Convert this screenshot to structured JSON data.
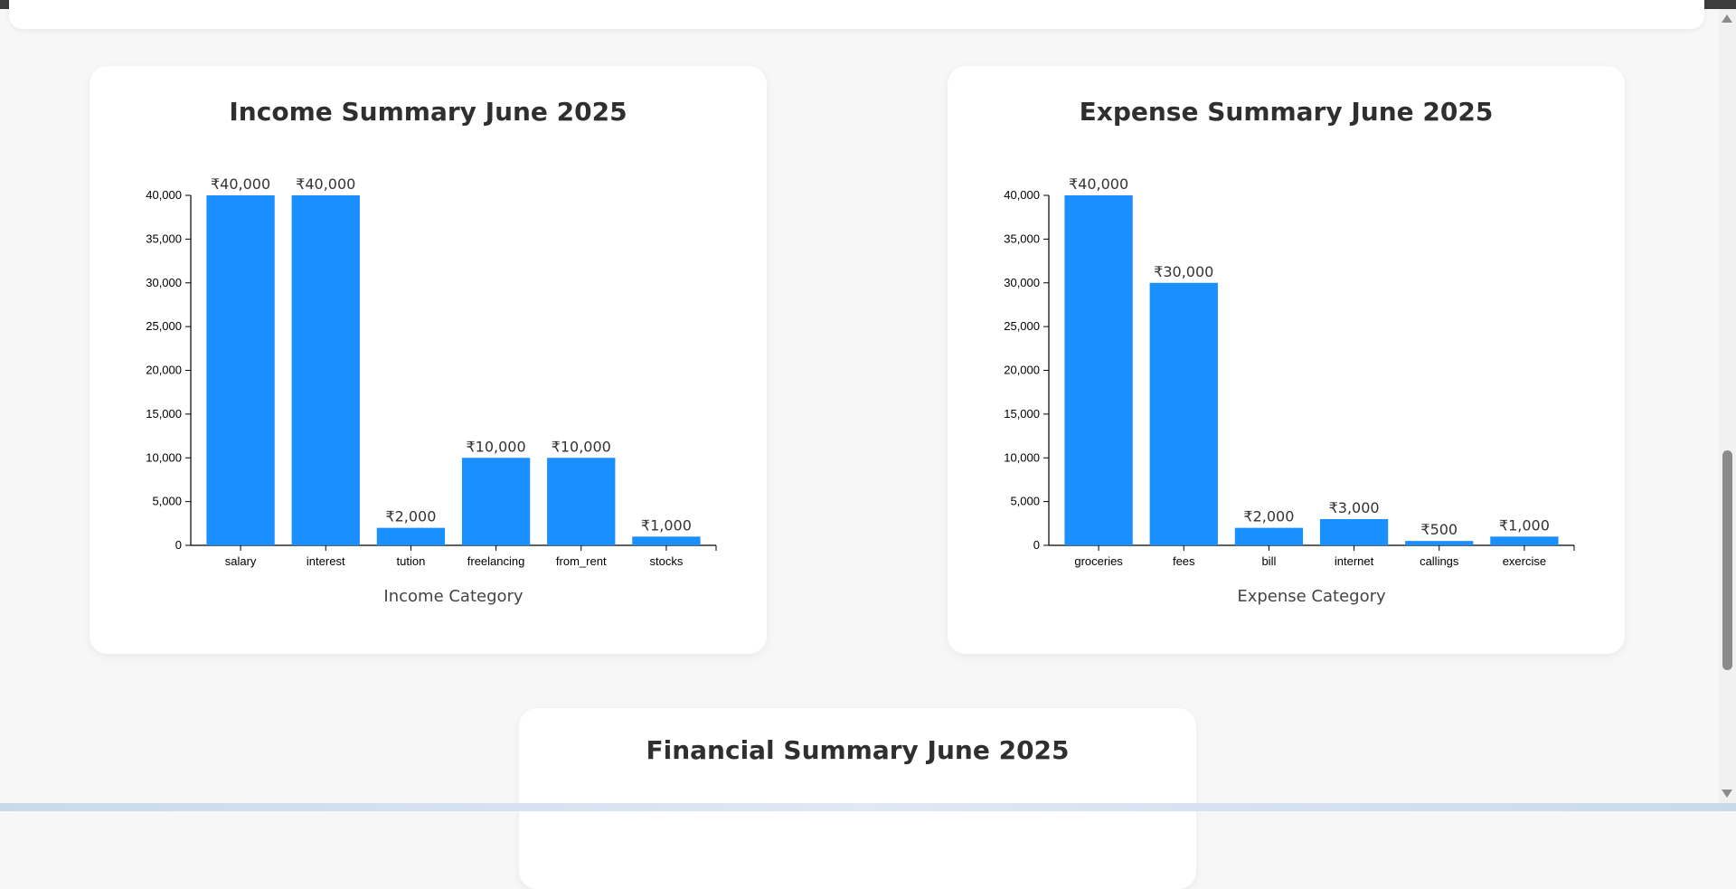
{
  "cards": {
    "income": {
      "title": "Income Summary June 2025"
    },
    "expense": {
      "title": "Expense Summary June 2025"
    },
    "financial": {
      "title": "Financial Summary June 2025"
    }
  },
  "colors": {
    "bar": "#1a8fff",
    "text": "#333333",
    "axis": "#000000"
  },
  "chart_data": [
    {
      "type": "bar",
      "title": "Income Summary June 2025",
      "xlabel": "Income Category",
      "ylabel": "",
      "ylim": [
        0,
        40000
      ],
      "yticks": [
        0,
        5000,
        10000,
        15000,
        20000,
        25000,
        30000,
        35000,
        40000
      ],
      "ytick_labels": [
        "0",
        "5,000",
        "10,000",
        "15,000",
        "20,000",
        "25,000",
        "30,000",
        "35,000",
        "40,000"
      ],
      "categories": [
        "salary",
        "interest",
        "tution",
        "freelancing",
        "from_rent",
        "stocks"
      ],
      "values": [
        40000,
        40000,
        2000,
        10000,
        10000,
        1000
      ],
      "data_labels": [
        "₹40,000",
        "₹40,000",
        "₹2,000",
        "₹10,000",
        "₹10,000",
        "₹1,000"
      ],
      "grid": false
    },
    {
      "type": "bar",
      "title": "Expense Summary June 2025",
      "xlabel": "Expense Category",
      "ylabel": "",
      "ylim": [
        0,
        40000
      ],
      "yticks": [
        0,
        5000,
        10000,
        15000,
        20000,
        25000,
        30000,
        35000,
        40000
      ],
      "ytick_labels": [
        "0",
        "5,000",
        "10,000",
        "15,000",
        "20,000",
        "25,000",
        "30,000",
        "35,000",
        "40,000"
      ],
      "categories": [
        "groceries",
        "fees",
        "bill",
        "internet",
        "callings",
        "exercise"
      ],
      "values": [
        40000,
        30000,
        2000,
        3000,
        500,
        1000
      ],
      "data_labels": [
        "₹40,000",
        "₹30,000",
        "₹2,000",
        "₹3,000",
        "₹500",
        "₹1,000"
      ],
      "grid": false
    }
  ]
}
